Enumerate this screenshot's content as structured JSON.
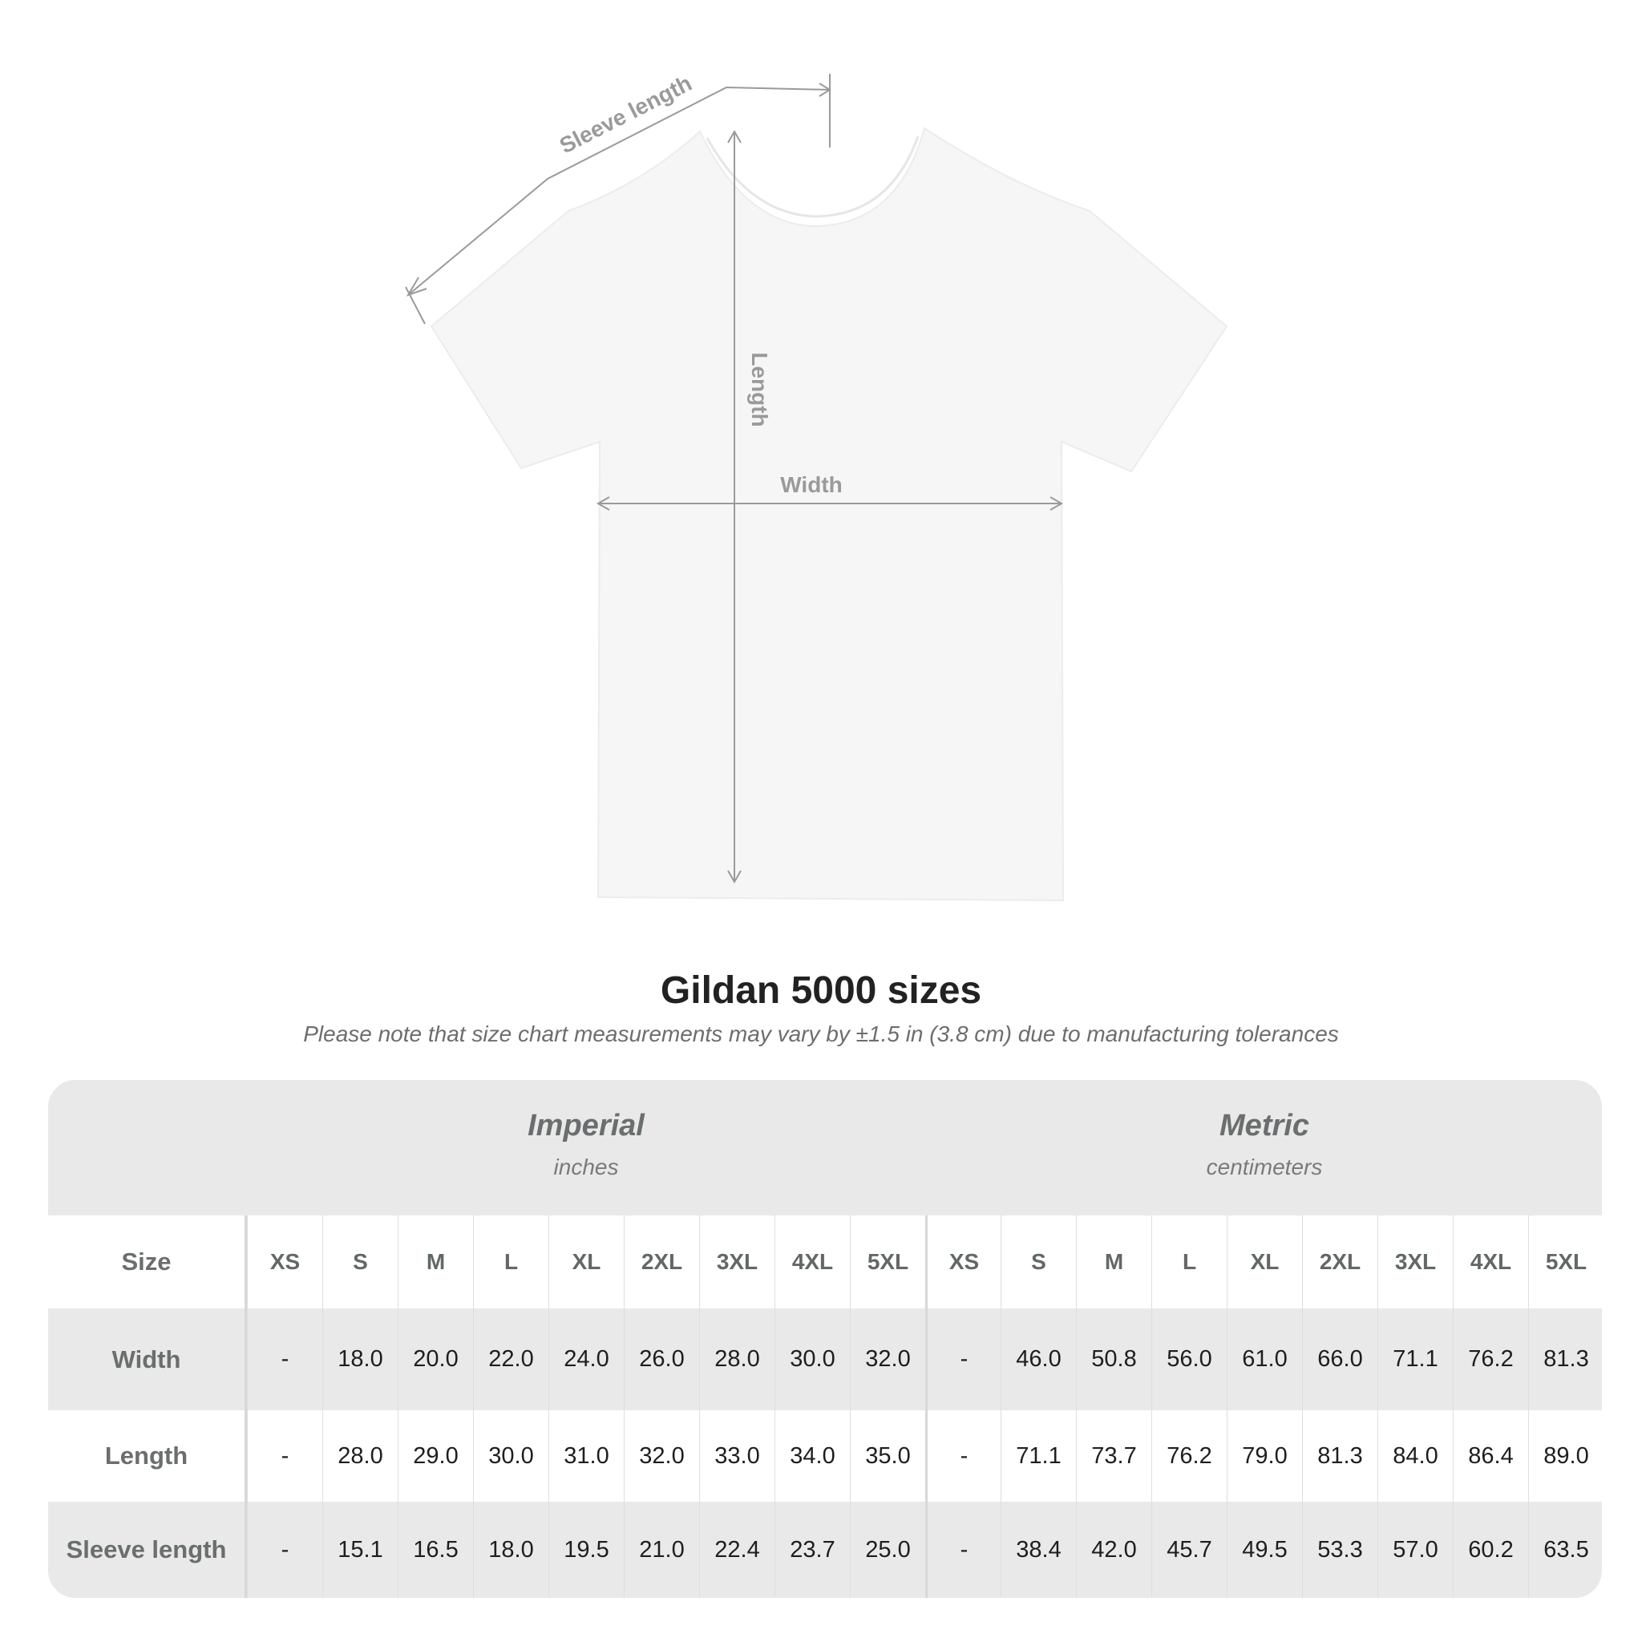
{
  "diagram": {
    "labels": {
      "sleeve_length": "Sleeve length",
      "length": "Length",
      "width": "Width"
    },
    "colors": {
      "shirt": "#f6f6f6",
      "line": "#9a9a9a",
      "label": "#9a9a9a"
    }
  },
  "title": "Gildan 5000 sizes",
  "note": "Please note that size chart measurements may vary by ±1.5 in (3.8 cm) due to manufacturing tolerances",
  "table": {
    "imperial": {
      "name": "Imperial",
      "unit": "inches"
    },
    "metric": {
      "name": "Metric",
      "unit": "centimeters"
    },
    "size_label": "Size",
    "sizes": [
      "XS",
      "S",
      "M",
      "L",
      "XL",
      "2XL",
      "3XL",
      "4XL",
      "5XL"
    ],
    "rows": [
      {
        "label": "Width",
        "imperial": [
          "-",
          "18.0",
          "20.0",
          "22.0",
          "24.0",
          "26.0",
          "28.0",
          "30.0",
          "32.0"
        ],
        "metric": [
          "-",
          "46.0",
          "50.8",
          "56.0",
          "61.0",
          "66.0",
          "71.1",
          "76.2",
          "81.3"
        ]
      },
      {
        "label": "Length",
        "imperial": [
          "-",
          "28.0",
          "29.0",
          "30.0",
          "31.0",
          "32.0",
          "33.0",
          "34.0",
          "35.0"
        ],
        "metric": [
          "-",
          "71.1",
          "73.7",
          "76.2",
          "79.0",
          "81.3",
          "84.0",
          "86.4",
          "89.0"
        ]
      },
      {
        "label": "Sleeve length",
        "imperial": [
          "-",
          "15.1",
          "16.5",
          "18.0",
          "19.5",
          "21.0",
          "22.4",
          "23.7",
          "25.0"
        ],
        "metric": [
          "-",
          "38.4",
          "42.0",
          "45.7",
          "49.5",
          "53.3",
          "57.0",
          "60.2",
          "63.5"
        ]
      }
    ]
  }
}
